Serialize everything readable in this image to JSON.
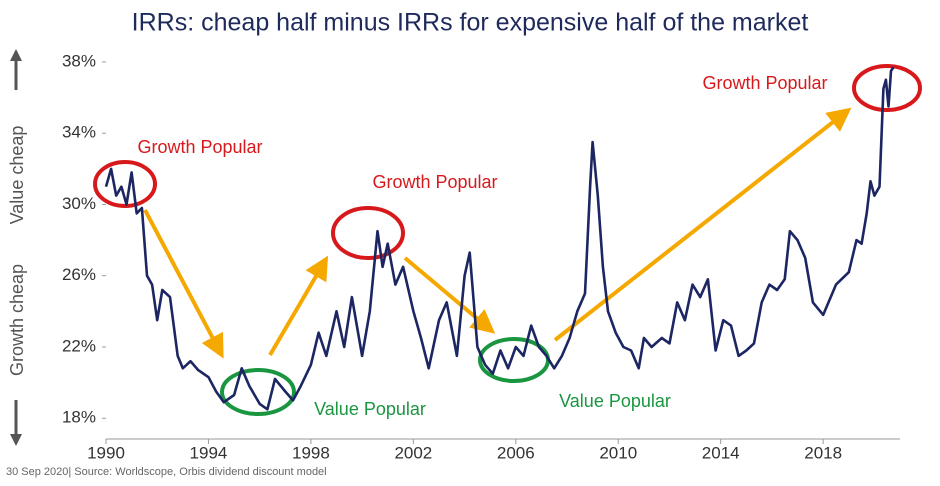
{
  "chart_data": {
    "type": "line",
    "title": "IRRs: cheap half minus IRRs for expensive half of the market",
    "ylabel_upper": "Value cheap",
    "ylabel_lower": "Growth cheap",
    "source": "30 Sep 2020| Source: Worldscope, Orbis dividend discount model",
    "color": "#1c2663",
    "xlim": [
      1990,
      2021
    ],
    "xticks": [
      1990,
      1994,
      1998,
      2002,
      2006,
      2010,
      2014,
      2018
    ],
    "ylim": [
      17,
      38
    ],
    "yticks": [
      {
        "value": 18,
        "label": "18%"
      },
      {
        "value": 22,
        "label": "22%"
      },
      {
        "value": 26,
        "label": "26%"
      },
      {
        "value": 30,
        "label": "30%"
      },
      {
        "value": 34,
        "label": "34%"
      },
      {
        "value": 38,
        "label": "38%"
      }
    ],
    "grid": false,
    "annotations": [
      {
        "text": "Growth Popular",
        "color": "#d7191c"
      },
      {
        "text": "Value Popular",
        "color": "#1a9641"
      },
      {
        "text": "Growth Popular",
        "color": "#d7191c"
      },
      {
        "text": "Value Popular",
        "color": "#1a9641"
      },
      {
        "text": "Growth Popular",
        "color": "#d7191c"
      }
    ],
    "x": [
      1990.0,
      1990.2,
      1990.4,
      1990.6,
      1990.8,
      1991.0,
      1991.2,
      1991.4,
      1991.6,
      1991.8,
      1992.0,
      1992.2,
      1992.5,
      1992.8,
      1993.0,
      1993.3,
      1993.6,
      1994.0,
      1994.3,
      1994.6,
      1995.0,
      1995.3,
      1995.6,
      1996.0,
      1996.3,
      1996.6,
      1997.0,
      1997.3,
      1997.6,
      1998.0,
      1998.3,
      1998.6,
      1999.0,
      1999.3,
      1999.6,
      2000.0,
      2000.3,
      2000.6,
      2000.8,
      2001.0,
      2001.3,
      2001.6,
      2002.0,
      2002.3,
      2002.6,
      2003.0,
      2003.3,
      2003.7,
      2004.0,
      2004.2,
      2004.5,
      2004.8,
      2005.1,
      2005.4,
      2005.7,
      2006.0,
      2006.3,
      2006.6,
      2006.9,
      2007.2,
      2007.5,
      2007.8,
      2008.1,
      2008.4,
      2008.7,
      2008.9,
      2009.0,
      2009.2,
      2009.4,
      2009.6,
      2009.9,
      2010.2,
      2010.5,
      2010.8,
      2011.0,
      2011.3,
      2011.7,
      2012.0,
      2012.3,
      2012.6,
      2012.9,
      2013.2,
      2013.5,
      2013.8,
      2014.1,
      2014.4,
      2014.7,
      2015.0,
      2015.3,
      2015.6,
      2015.9,
      2016.2,
      2016.5,
      2016.7,
      2017.0,
      2017.3,
      2017.6,
      2018.0,
      2018.5,
      2019.0,
      2019.3,
      2019.5,
      2019.7,
      2019.85,
      2020.0,
      2020.2,
      2020.35,
      2020.45,
      2020.55,
      2020.65,
      2020.75
    ],
    "values": [
      31.0,
      32.0,
      30.5,
      31.0,
      30.0,
      31.8,
      29.5,
      29.8,
      26.0,
      25.5,
      23.5,
      25.2,
      24.8,
      21.5,
      20.8,
      21.2,
      20.7,
      20.3,
      19.5,
      18.9,
      19.3,
      20.8,
      19.8,
      18.8,
      18.5,
      20.2,
      19.5,
      19.0,
      19.8,
      21.0,
      22.8,
      21.5,
      24.0,
      22.0,
      24.8,
      21.5,
      24.0,
      28.5,
      26.5,
      27.8,
      25.5,
      26.5,
      24.0,
      22.5,
      20.8,
      23.5,
      24.5,
      21.5,
      26.0,
      27.3,
      22.0,
      21.0,
      20.5,
      21.8,
      20.8,
      22.0,
      21.5,
      23.2,
      22.0,
      21.5,
      20.8,
      21.5,
      22.5,
      24.0,
      25.0,
      31.0,
      33.5,
      30.5,
      26.5,
      24.0,
      22.8,
      22.0,
      21.8,
      20.8,
      22.5,
      22.0,
      22.5,
      22.2,
      24.5,
      23.5,
      25.5,
      24.8,
      25.8,
      21.8,
      23.5,
      23.2,
      21.5,
      21.8,
      22.2,
      24.5,
      25.5,
      25.2,
      25.8,
      28.5,
      28.0,
      27.0,
      24.5,
      23.8,
      25.5,
      26.2,
      28.0,
      27.8,
      29.5,
      31.3,
      30.5,
      31.0,
      36.5,
      37.0,
      35.5,
      37.5,
      37.7
    ]
  }
}
